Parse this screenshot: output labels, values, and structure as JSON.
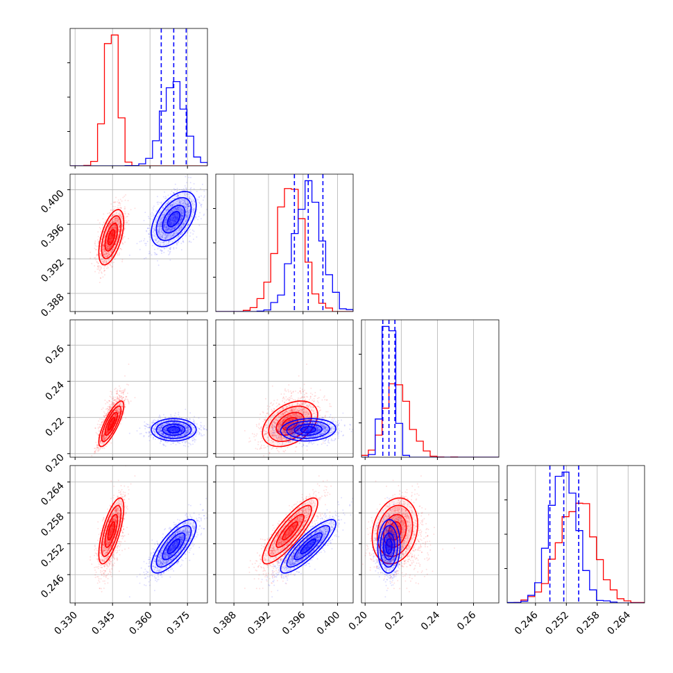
{
  "chart_data": {
    "type": "corner",
    "grid": true,
    "series": [
      {
        "name": "",
        "color": "#ff0000",
        "mean": [
          0.3445,
          0.3945,
          0.2165,
          0.2545
        ],
        "std": [
          0.0025,
          0.0016,
          0.0063,
          0.0032
        ],
        "corr": [
          [
            1,
            0.55,
            0.8,
            0.7
          ],
          [
            0.55,
            1,
            0.4,
            0.85
          ],
          [
            0.8,
            0.4,
            1,
            0.2
          ],
          [
            0.7,
            0.85,
            0.2,
            1
          ]
        ]
      },
      {
        "name": "",
        "color": "#0000ff",
        "mean": [
          0.3695,
          0.3966,
          0.2132,
          0.2515
        ],
        "std": [
          0.0045,
          0.0016,
          0.0031,
          0.0026
        ],
        "corr": [
          [
            1,
            0.5,
            0.0,
            0.75
          ],
          [
            0.5,
            1,
            0.1,
            0.85
          ],
          [
            0.0,
            0.1,
            1,
            0.05
          ],
          [
            0.75,
            0.85,
            0.05,
            1
          ]
        ],
        "quantiles": [
          [
            0.3645,
            0.3695,
            0.3745
          ],
          [
            0.395,
            0.3966,
            0.3983
          ],
          [
            0.2098,
            0.2132,
            0.2165
          ],
          [
            0.2488,
            0.2515,
            0.2544
          ]
        ]
      }
    ],
    "params": [
      {
        "range": [
          0.328,
          0.383
        ],
        "ticks": [
          "0.330",
          "0.345",
          "0.360",
          "0.375"
        ],
        "tick_values": [
          0.33,
          0.345,
          0.36,
          0.375
        ]
      },
      {
        "range": [
          0.3859,
          0.4018
        ],
        "ticks": [
          "0.388",
          "0.392",
          "0.396",
          "0.400"
        ],
        "tick_values": [
          0.388,
          0.392,
          0.396,
          0.4
        ]
      },
      {
        "range": [
          0.198,
          0.274
        ],
        "ticks": [
          "0.20",
          "0.22",
          "0.24",
          "0.26"
        ],
        "tick_values": [
          0.2,
          0.22,
          0.24,
          0.26
        ]
      },
      {
        "range": [
          0.2405,
          0.2672
        ],
        "ticks": [
          "0.246",
          "0.252",
          "0.258",
          "0.264"
        ],
        "tick_values": [
          0.246,
          0.252,
          0.258,
          0.264
        ]
      }
    ]
  }
}
